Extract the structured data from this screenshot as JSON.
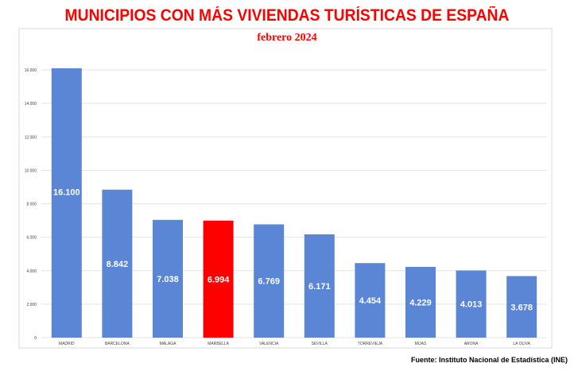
{
  "chart_data": {
    "type": "bar",
    "title": "MUNICIPIOS CON MÁS VIVIENDAS TURÍSTICAS DE ESPAÑA",
    "subtitle": "febrero 2024",
    "categories": [
      "MADRID",
      "BARCELONA",
      "MÁLAGA",
      "MARBELLA",
      "VALENCIA",
      "SEVILLA",
      "TORREVIEJA",
      "MIJAS",
      "ARONA",
      "LA OLIVA"
    ],
    "values": [
      16100,
      8842,
      7038,
      6994,
      6769,
      6171,
      4454,
      4229,
      4013,
      3678
    ],
    "data_labels": [
      "16.100",
      "8.842",
      "7.038",
      "6.994",
      "6.769",
      "6.171",
      "4.454",
      "4.229",
      "4.013",
      "3.678"
    ],
    "ylim": [
      0,
      16000
    ],
    "yticks": [
      0,
      2000,
      4000,
      6000,
      8000,
      10000,
      12000,
      14000,
      16000
    ],
    "ytick_labels": [
      "0",
      "2.000",
      "4.000",
      "6.000",
      "8.000",
      "10.000",
      "12.000",
      "14.000",
      "16.000"
    ],
    "grid": true,
    "colors": {
      "bar": "#5b86d6",
      "highlight": "#ff0000",
      "highlight_category": "MARBELLA",
      "grid": "#e3e3e3"
    },
    "source": "Fuente: Instituto Nacional de Estadística (INE)"
  }
}
